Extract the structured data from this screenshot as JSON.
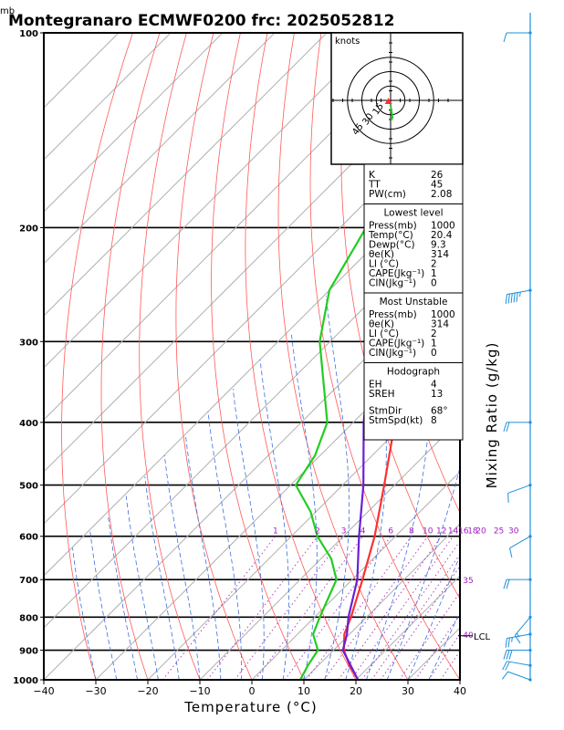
{
  "chart_data": {
    "type": "line",
    "title": "Montegranaro ECMWF0200 frc: 2025052812",
    "pressure_unit": "mb",
    "xlabel": "Temperature (°C)",
    "ylabel_right": "Mixing Ratio (g/kg)",
    "xlim": [
      -40,
      40
    ],
    "ylim": [
      1000,
      100
    ],
    "y_scale": "log-pressure",
    "skew": "temperature isotherms slanted 45°",
    "x_ticks": [
      "−40",
      "−30",
      "−20",
      "−10",
      "0",
      "10",
      "20",
      "30",
      "40"
    ],
    "p_ticks": [
      "100",
      "200",
      "300",
      "400",
      "500",
      "600",
      "700",
      "800",
      "900",
      "1000"
    ],
    "mixing_ratio_labels": [
      "1",
      "2",
      "3",
      "4",
      "6",
      "8",
      "10",
      "12",
      "14",
      "16",
      "18",
      "20",
      "25",
      "30",
      "35",
      "40"
    ],
    "series": [
      {
        "name": "Temperature",
        "color": "#ff3030",
        "points": [
          [
            1000,
            20.4
          ],
          [
            950,
            16
          ],
          [
            900,
            12
          ],
          [
            850,
            9
          ],
          [
            800,
            7
          ],
          [
            700,
            2
          ],
          [
            600,
            -4
          ],
          [
            500,
            -12
          ],
          [
            400,
            -22
          ],
          [
            300,
            -36
          ],
          [
            250,
            -46
          ],
          [
            200,
            -43
          ],
          [
            150,
            -40
          ],
          [
            120,
            -38
          ],
          [
            100,
            -37
          ]
        ]
      },
      {
        "name": "Dewpoint",
        "color": "#22cc22",
        "points": [
          [
            1000,
            9.3
          ],
          [
            950,
            8
          ],
          [
            900,
            7
          ],
          [
            850,
            3
          ],
          [
            800,
            1
          ],
          [
            700,
            -3
          ],
          [
            650,
            -8
          ],
          [
            600,
            -15
          ],
          [
            550,
            -21
          ],
          [
            500,
            -29
          ],
          [
            450,
            -31
          ],
          [
            400,
            -35
          ],
          [
            300,
            -52
          ],
          [
            250,
            -60
          ],
          [
            200,
            -65
          ],
          [
            150,
            -68
          ],
          [
            120,
            -70
          ],
          [
            100,
            -70
          ]
        ]
      },
      {
        "name": "Parcel",
        "color": "#6a1fd6",
        "points": [
          [
            1000,
            20.4
          ],
          [
            900,
            11.8
          ],
          [
            850,
            9.5
          ],
          [
            800,
            6.5
          ],
          [
            700,
            1
          ],
          [
            600,
            -7
          ],
          [
            500,
            -16
          ],
          [
            400,
            -28
          ],
          [
            300,
            -42
          ],
          [
            250,
            -52
          ],
          [
            200,
            -60
          ],
          [
            150,
            -70
          ],
          [
            120,
            -78
          ]
        ]
      }
    ],
    "lcl_label": "LCL",
    "lcl_pressure": 855,
    "hodograph": {
      "unit_label": "knots",
      "ring_labels": [
        "15",
        "30",
        "45"
      ],
      "ring_speeds": [
        15,
        30,
        45
      ],
      "wind_trace_kt": [
        [
          0,
          -5
        ],
        [
          1,
          -12
        ],
        [
          2,
          -18
        ],
        [
          1,
          -20
        ],
        [
          0,
          -20
        ]
      ],
      "storm_motion": {
        "dir_deg": 68,
        "speed_kt": 8
      }
    },
    "indices": {
      "k": {
        "label": "K",
        "value": "26"
      },
      "tt": {
        "label": "TT",
        "value": "45"
      },
      "pw": {
        "label": "PW(cm)",
        "value": "2.08"
      },
      "lowest_header": "Lowest level",
      "lowest": [
        {
          "label": "Press(mb)",
          "value": "1000"
        },
        {
          "label": "Temp(°C)",
          "value": "20.4"
        },
        {
          "label": "Dewp(°C)",
          "value": "9.3"
        },
        {
          "label": "θe(K)",
          "value": "314"
        },
        {
          "label": "LI (°C)",
          "value": "2"
        },
        {
          "label": "CAPE(Jkg⁻¹)",
          "value": "1"
        },
        {
          "label": "CIN(Jkg⁻¹)",
          "value": "0"
        }
      ],
      "unstable_header": "Most Unstable",
      "unstable": [
        {
          "label": "Press(mb)",
          "value": "1000"
        },
        {
          "label": "θe(K)",
          "value": "314"
        },
        {
          "label": "LI (°C)",
          "value": "2"
        },
        {
          "label": "CAPE(Jkg⁻¹)",
          "value": "1"
        },
        {
          "label": "CIN(Jkg⁻¹)",
          "value": "0"
        }
      ],
      "hodo_header": "Hodograph",
      "hodo": [
        {
          "label": "EH",
          "value": "4"
        },
        {
          "label": "SREH",
          "value": "13"
        },
        {
          "label": "StmDir",
          "value": "68°"
        },
        {
          "label": "StmSpd(kt)",
          "value": "8"
        }
      ]
    },
    "wind_profile": [
      {
        "p": 100,
        "dir": 270,
        "spd": 10
      },
      {
        "p": 250,
        "dir": 260,
        "spd": 55
      },
      {
        "p": 400,
        "dir": 270,
        "spd": 20
      },
      {
        "p": 500,
        "dir": 250,
        "spd": 10
      },
      {
        "p": 600,
        "dir": 240,
        "spd": 10
      },
      {
        "p": 700,
        "dir": 270,
        "spd": 20
      },
      {
        "p": 800,
        "dir": 220,
        "spd": 15
      },
      {
        "p": 850,
        "dir": 260,
        "spd": 25
      },
      {
        "p": 900,
        "dir": 270,
        "spd": 30
      },
      {
        "p": 950,
        "dir": 280,
        "spd": 20
      },
      {
        "p": 1000,
        "dir": 290,
        "spd": 10
      }
    ]
  }
}
